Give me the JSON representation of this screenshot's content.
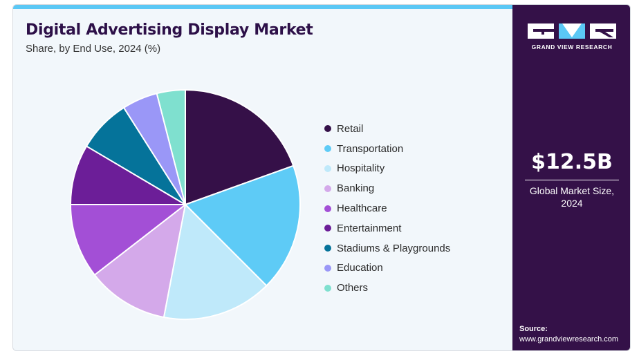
{
  "chart_data": {
    "type": "pie",
    "title": "Digital Advertising Display Market",
    "subtitle": "Share, by End Use, 2024 (%)",
    "categories": [
      "Retail",
      "Transportation",
      "Hospitality",
      "Banking",
      "Healthcare",
      "Entertainment",
      "Stadiums & Playgrounds",
      "Education",
      "Others"
    ],
    "values": [
      19.5,
      18.0,
      15.5,
      11.5,
      10.5,
      8.5,
      7.5,
      5.0,
      4.0
    ],
    "colors": [
      "#351048",
      "#5ecbf6",
      "#bfe9fa",
      "#d4a9ea",
      "#a34fd6",
      "#6c1e98",
      "#05739a",
      "#9a97f7",
      "#7fe0cf"
    ],
    "legend_position": "right",
    "start_angle": "12 o'clock",
    "direction": "clockwise"
  },
  "sidebar": {
    "brand_icon": "gvr-logo",
    "brand_name": "GRAND VIEW RESEARCH",
    "market_value": "$12.5B",
    "market_caption_line1": "Global Market Size,",
    "market_caption_line2": "2024",
    "source_label": "Source:",
    "source_url": "www.grandviewresearch.com"
  }
}
